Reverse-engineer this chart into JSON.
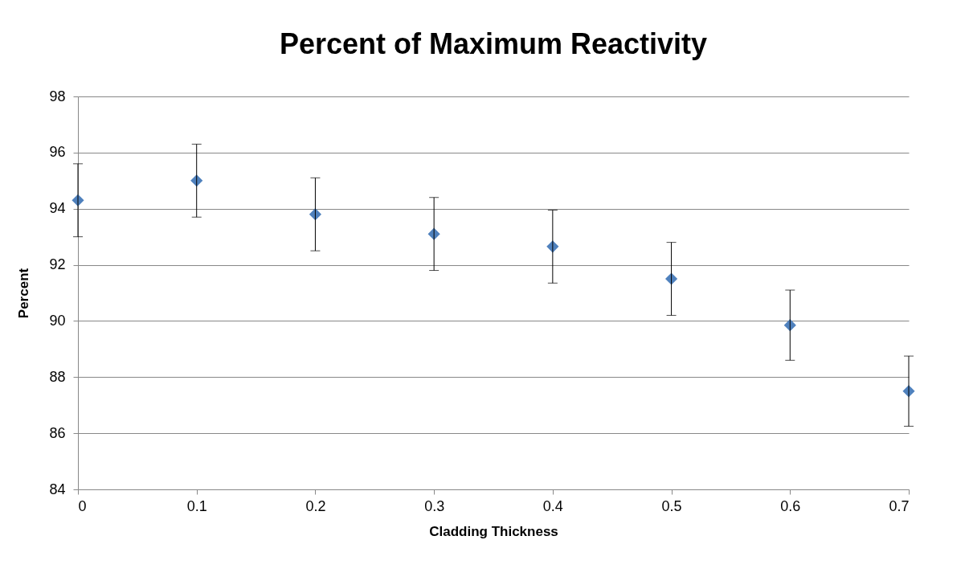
{
  "chart_data": {
    "type": "scatter",
    "title": "Percent of Maximum Reactivity",
    "xlabel": "Cladding Thickness",
    "ylabel": "Percent",
    "x": [
      0,
      0.1,
      0.2,
      0.3,
      0.4,
      0.5,
      0.6,
      0.7
    ],
    "series": [
      {
        "color": "#4f81bd",
        "values": [
          94.3,
          95.0,
          93.8,
          93.1,
          92.65,
          91.5,
          89.85,
          87.5
        ],
        "errors": [
          1.3,
          1.3,
          1.3,
          1.3,
          1.3,
          1.3,
          1.25,
          1.25
        ]
      }
    ],
    "xlim": [
      0,
      0.7
    ],
    "xticks": [
      0,
      0.1,
      0.2,
      0.3,
      0.4,
      0.5,
      0.6,
      0.7
    ],
    "ylim": [
      84,
      98
    ],
    "yticks": [
      84,
      86,
      88,
      90,
      92,
      94,
      96,
      98
    ],
    "grid": "y",
    "marker": "diamond"
  }
}
